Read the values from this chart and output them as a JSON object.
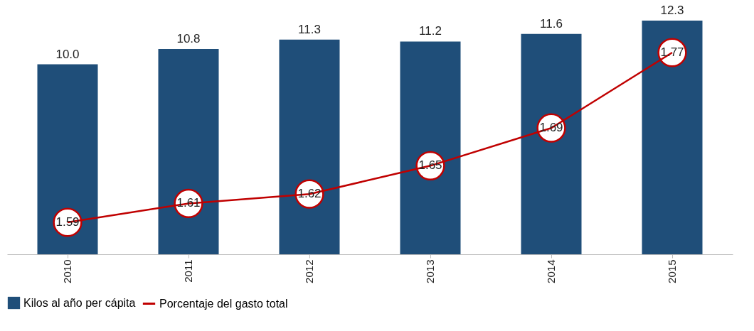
{
  "chart_data": {
    "type": "bar",
    "categories": [
      "2010",
      "2011",
      "2012",
      "2013",
      "2014",
      "2015"
    ],
    "series": [
      {
        "name": "Kilos al año per cápita",
        "color": "#1f4e79",
        "values": [
          10.0,
          10.8,
          11.3,
          11.2,
          11.6,
          12.3
        ],
        "value_labels": [
          "10.0",
          "10.8",
          "11.3",
          "11.2",
          "11.6",
          "12.3"
        ]
      },
      {
        "name": "Porcentaje del gasto total",
        "type": "line",
        "axis": "y2",
        "color": "#c00000",
        "marker": "circle",
        "values": [
          1.59,
          1.61,
          1.62,
          1.65,
          1.69,
          1.77
        ],
        "value_labels": [
          "1.59",
          "1.61",
          "1.62",
          "1.65",
          "1.69",
          "1.77"
        ]
      }
    ],
    "legend": "bottom",
    "grid": false,
    "tick_labels": "x"
  }
}
